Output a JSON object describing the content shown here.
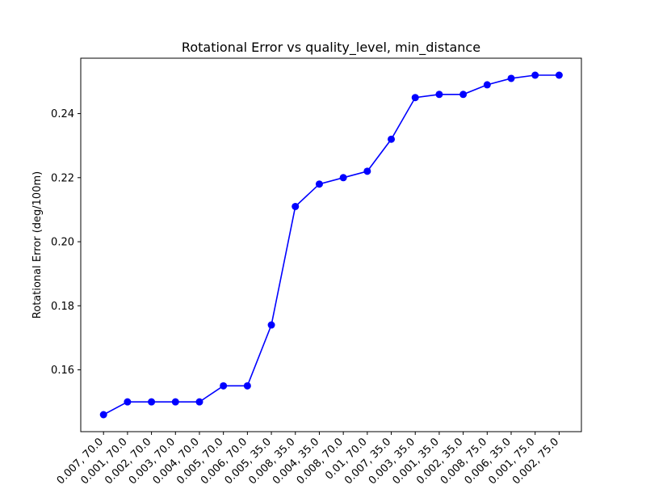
{
  "chart_data": {
    "type": "line",
    "title": "Rotational Error vs quality_level, min_distance",
    "xlabel": "",
    "ylabel": "Rotational Error (deg/100m)",
    "categories": [
      "0.007, 70.0",
      "0.001, 70.0",
      "0.002, 70.0",
      "0.003, 70.0",
      "0.004, 70.0",
      "0.005, 70.0",
      "0.006, 70.0",
      "0.005, 35.0",
      "0.008, 35.0",
      "0.004, 35.0",
      "0.008, 70.0",
      "0.01, 70.0",
      "0.007, 35.0",
      "0.003, 35.0",
      "0.001, 35.0",
      "0.002, 35.0",
      "0.008, 75.0",
      "0.006, 35.0",
      "0.001, 75.0",
      "0.002, 75.0"
    ],
    "series": [
      {
        "values": [
          0.146,
          0.15,
          0.15,
          0.15,
          0.15,
          0.155,
          0.155,
          0.174,
          0.211,
          0.218,
          0.22,
          0.222,
          0.232,
          0.245,
          0.246,
          0.246,
          0.249,
          0.251,
          0.252,
          0.252
        ],
        "color": "#0000ff",
        "marker": "circle"
      }
    ],
    "yticks": [
      0.16,
      0.18,
      0.2,
      0.22,
      0.24
    ],
    "ylim": [
      0.1407,
      0.2573
    ],
    "grid": false,
    "legend": "none"
  }
}
